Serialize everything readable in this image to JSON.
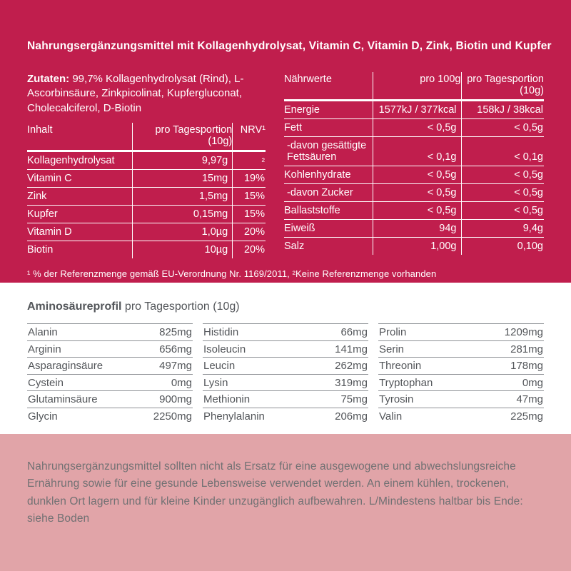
{
  "colors": {
    "brand_red": "#C01E4D",
    "dusty_pink": "#E1A4A8",
    "text_gray": "#53565A",
    "note_gray": "#717173",
    "white": "#FFFFFF"
  },
  "header": {
    "title": "Nahrungsergänzungsmittel mit Kollagenhydrolysat, Vitamin C, Vitamin D, Zink, Biotin und Kupfer"
  },
  "ingredients": {
    "label": "Zutaten:",
    "text": " 99,7% Kollagenhydrolysat (Rind), L-Ascorbinsäure, Zinkpicolinat, Kupfergluconat, Cholecalciferol, D-Biotin"
  },
  "inhalt_table": {
    "col1_header": "Inhalt",
    "col2_header_line1": "pro Tagesportion",
    "col2_header_line2": "(10g)",
    "col3_header": "NRV¹",
    "rows": [
      {
        "label": "Kollagenhydrolysat",
        "value": "9,97g",
        "nrv": "²"
      },
      {
        "label": "Vitamin C",
        "value": "15mg",
        "nrv": "19%"
      },
      {
        "label": "Zink",
        "value": "1,5mg",
        "nrv": "15%"
      },
      {
        "label": "Kupfer",
        "value": "0,15mg",
        "nrv": "15%"
      },
      {
        "label": "Vitamin D",
        "value": "1,0µg",
        "nrv": "20%"
      },
      {
        "label": "Biotin",
        "value": "10µg",
        "nrv": "20%"
      }
    ]
  },
  "naehrwerte_table": {
    "col1_header": "Nährwerte",
    "col2_header": "pro 100g",
    "col3_header_line1": "pro Tagesportion",
    "col3_header_line2": "(10g)",
    "rows": [
      {
        "label": "Energie",
        "per_100g": "1577kJ / 377kcal",
        "per_portion": "158kJ / 38kcal"
      },
      {
        "label": "Fett",
        "per_100g": "< 0,5g",
        "per_portion": "< 0,5g"
      },
      {
        "label": "-davon gesättigte Fettsäuren",
        "per_100g": "< 0,1g",
        "per_portion": "< 0,1g"
      },
      {
        "label": "Kohlenhydrate",
        "per_100g": "< 0,5g",
        "per_portion": "< 0,5g"
      },
      {
        "label": "-davon Zucker",
        "per_100g": "< 0,5g",
        "per_portion": "< 0,5g"
      },
      {
        "label": "Ballaststoffe",
        "per_100g": "< 0,5g",
        "per_portion": "< 0,5g"
      },
      {
        "label": "Eiweiß",
        "per_100g": "94g",
        "per_portion": "9,4g"
      },
      {
        "label": "Salz",
        "per_100g": "1,00g",
        "per_portion": "0,10g"
      }
    ]
  },
  "footnote": "¹ % der Referenzmenge gemäß EU-Verordnung Nr. 1169/2011, ²Keine Referenzmenge vorhanden",
  "amino_profile": {
    "title": "Aminosäureprofil",
    "subtitle": " pro Tagesportion (10g)",
    "columns": [
      [
        {
          "label": "Alanin",
          "value": "825mg"
        },
        {
          "label": "Arginin",
          "value": "656mg"
        },
        {
          "label": "Asparaginsäure",
          "value": "497mg"
        },
        {
          "label": "Cystein",
          "value": "0mg"
        },
        {
          "label": "Glutaminsäure",
          "value": "900mg"
        },
        {
          "label": "Glycin",
          "value": "2250mg"
        }
      ],
      [
        {
          "label": "Histidin",
          "value": "66mg"
        },
        {
          "label": "Isoleucin",
          "value": "141mg"
        },
        {
          "label": "Leucin",
          "value": "262mg"
        },
        {
          "label": "Lysin",
          "value": "319mg"
        },
        {
          "label": "Methionin",
          "value": "75mg"
        },
        {
          "label": "Phenylalanin",
          "value": "206mg"
        }
      ],
      [
        {
          "label": "Prolin",
          "value": "1209mg"
        },
        {
          "label": "Serin",
          "value": "281mg"
        },
        {
          "label": "Threonin",
          "value": "178mg"
        },
        {
          "label": "Tryptophan",
          "value": "0mg"
        },
        {
          "label": "Tyrosin",
          "value": "47mg"
        },
        {
          "label": "Valin",
          "value": "225mg"
        }
      ]
    ]
  },
  "storage_note": "Nahrungsergänzungsmittel sollten nicht als Ersatz für eine ausgewogene und abwechslungsreiche Ernährung sowie für eine gesunde Lebensweise verwendet werden. An einem kühlen, trockenen, dunklen Ort lagern und für kleine Kinder unzugänglich aufbewahren.  L/Mindestens haltbar bis Ende: siehe Boden"
}
